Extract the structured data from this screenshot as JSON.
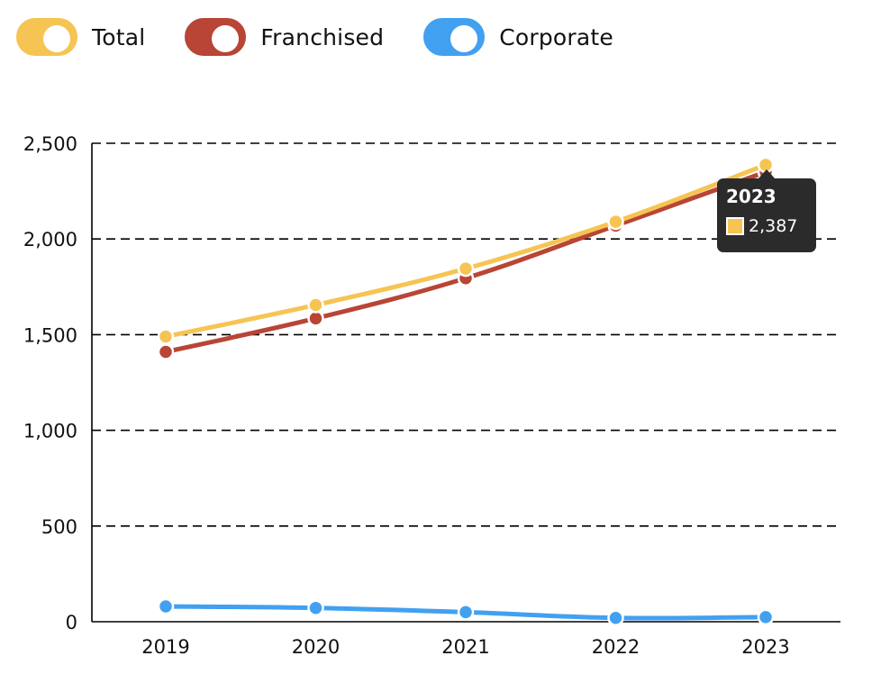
{
  "legend": [
    {
      "label": "Total",
      "color": "#F6C453",
      "enabled": true
    },
    {
      "label": "Franchised",
      "color": "#B84535",
      "enabled": true
    },
    {
      "label": "Corporate",
      "color": "#42A0F0",
      "enabled": true
    }
  ],
  "chart_data": {
    "type": "line",
    "categories": [
      "2019",
      "2020",
      "2021",
      "2022",
      "2023"
    ],
    "series": [
      {
        "name": "Total",
        "color": "#F6C453",
        "values": [
          1490,
          1655,
          1845,
          2090,
          2387
        ]
      },
      {
        "name": "Franchised",
        "color": "#B84535",
        "values": [
          1410,
          1585,
          1795,
          2070,
          2350
        ]
      },
      {
        "name": "Corporate",
        "color": "#42A0F0",
        "values": [
          80,
          72,
          50,
          20,
          24
        ]
      }
    ],
    "ylim": [
      0,
      2500
    ],
    "yticks": [
      0,
      500,
      1000,
      1500,
      2000,
      2500
    ],
    "ytick_labels": [
      "0",
      "500",
      "1,000",
      "1,500",
      "2,000",
      "2,500"
    ],
    "grid": "dashed-horizontal",
    "legend_position": "top-left"
  },
  "tooltip": {
    "title": "2023",
    "value": "2,387",
    "color": "#F6C453"
  }
}
